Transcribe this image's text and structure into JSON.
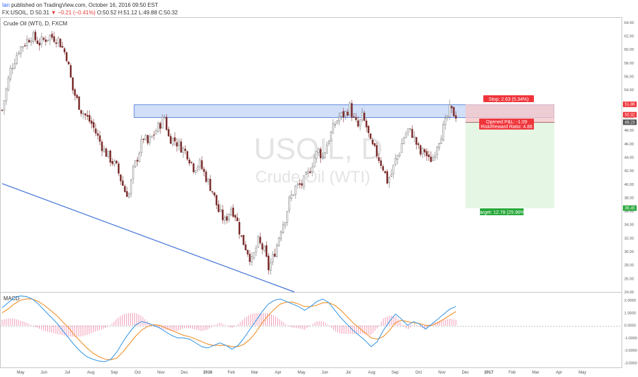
{
  "header": {
    "author": "Ian",
    "published": " published on TradingView.com, October 16, 2016 09:50 EST",
    "symbol": "FX:USOIL, D",
    "last": "50.31",
    "arrow": "▼",
    "change": "−0.21 (−0.41%)",
    "o": "O:50.52",
    "h": "H:51.12",
    "l": "L:49.88",
    "c": "C:50.32"
  },
  "legend_label": "Crude Oil (WTI), D, FXCM",
  "watermark": {
    "symbol": "USOIL, D",
    "name": "Crude Oil (WTI)"
  },
  "colors": {
    "up": "#6e6e6e",
    "down": "#7a2b2b",
    "resistance_fill": "#c9d9f7",
    "resistance_stroke": "#3d6fd6",
    "trendline": "#3d6fd6",
    "stop_fill": "#f4c7c9",
    "target_fill": "#e6f6e4",
    "stop_label": "#f0353a",
    "target_label": "#27a83a",
    "macd_line": "#3f9be6",
    "signal_line": "#f0902a",
    "histogram": "#f29bb5"
  },
  "position": {
    "stop_label": "Stop: 2.63 (5.34%)",
    "pnl_label": "Opened P&L: -1.09",
    "rr_label": "Risk/Reward Ratio: 4.86",
    "target_label": "Target: 12.78 (25.96%)",
    "entry": 49.2,
    "stop": 51.86,
    "target": 36.45,
    "last": 50.32
  },
  "price_tags": {
    "stop": "51.86",
    "last": "50.32",
    "entry": "49.23",
    "target": "36.45"
  },
  "macd_label": "MACD",
  "chart_data": [
    {
      "type": "candlestick",
      "title": "Crude Oil (WTI), D, FXCM",
      "x_axis_labels": [
        "May",
        "Jun",
        "Jul",
        "Aug",
        "Sep",
        "Oct",
        "Nov",
        "Dec",
        "2016",
        "Feb",
        "Mar",
        "Apr",
        "May",
        "Jun",
        "Jul",
        "Aug",
        "Sep",
        "Oct",
        "Nov",
        "Dec",
        "2017",
        "Feb",
        "Mar",
        "Apr",
        "May"
      ],
      "y_ticks": [
        "64.00",
        "62.00",
        "60.00",
        "58.00",
        "56.00",
        "54.00",
        "52.00",
        "50.00",
        "48.00",
        "46.00",
        "44.00",
        "42.00",
        "40.00",
        "38.00",
        "36.00",
        "34.00",
        "32.00",
        "30.00",
        "28.00",
        "26.00",
        "24.00"
      ],
      "ylim": [
        24,
        64.6
      ],
      "price_path": [
        [
          0,
          51
        ],
        [
          4,
          57
        ],
        [
          8,
          60
        ],
        [
          14,
          62
        ],
        [
          18,
          61
        ],
        [
          23,
          62
        ],
        [
          27,
          61.5
        ],
        [
          31,
          59
        ],
        [
          34,
          54
        ],
        [
          38,
          51
        ],
        [
          43,
          49
        ],
        [
          49,
          45
        ],
        [
          55,
          42.5
        ],
        [
          59,
          39
        ],
        [
          61,
          38.5
        ],
        [
          63,
          42
        ],
        [
          66,
          45
        ],
        [
          68,
          47
        ],
        [
          70,
          46
        ],
        [
          73,
          47.5
        ],
        [
          76,
          49
        ],
        [
          78,
          50
        ],
        [
          80,
          47
        ],
        [
          83,
          46.5
        ],
        [
          86,
          45.5
        ],
        [
          89,
          44.5
        ],
        [
          92,
          42.5
        ],
        [
          95,
          43
        ],
        [
          98,
          41
        ],
        [
          101,
          39
        ],
        [
          104,
          36
        ],
        [
          107,
          34.5
        ],
        [
          110,
          36.5
        ],
        [
          112,
          35.5
        ],
        [
          115,
          32
        ],
        [
          118,
          30
        ],
        [
          120,
          28.5
        ],
        [
          123,
          31.5
        ],
        [
          126,
          30
        ],
        [
          128,
          27.5
        ],
        [
          130,
          29
        ],
        [
          132,
          31
        ],
        [
          134,
          33.5
        ],
        [
          136,
          35
        ],
        [
          138,
          37.5
        ],
        [
          141,
          39.5
        ],
        [
          144,
          40
        ],
        [
          147,
          41.5
        ],
        [
          150,
          44
        ],
        [
          152,
          45
        ],
        [
          154,
          44
        ],
        [
          156,
          46
        ],
        [
          158,
          47.5
        ],
        [
          160,
          49
        ],
        [
          162,
          50
        ],
        [
          165,
          50.5
        ],
        [
          167,
          51.5
        ],
        [
          169,
          49.5
        ],
        [
          171,
          48.5
        ],
        [
          173,
          50
        ],
        [
          175,
          48.5
        ],
        [
          177,
          46
        ],
        [
          180,
          44.5
        ],
        [
          183,
          42.5
        ],
        [
          185,
          40.5
        ],
        [
          187,
          41.5
        ],
        [
          189,
          43.5
        ],
        [
          191,
          45
        ],
        [
          193,
          47
        ],
        [
          195,
          48
        ],
        [
          197,
          47.5
        ],
        [
          199,
          46
        ],
        [
          201,
          44.5
        ],
        [
          203,
          45
        ],
        [
          205,
          43.5
        ],
        [
          207,
          44
        ],
        [
          209,
          46
        ],
        [
          211,
          47.5
        ],
        [
          213,
          49
        ],
        [
          215,
          51
        ],
        [
          217,
          50.5
        ],
        [
          218,
          50.3
        ]
      ],
      "resistance_zone": [
        49.9,
        51.8
      ],
      "trendline": {
        "from": [
          "Apr 2015",
          40.1
        ],
        "to": [
          "Mar 2016",
          24
        ]
      }
    },
    {
      "type": "line",
      "title": "MACD",
      "y_ticks": [
        "2.0000",
        "1.0000",
        "0.0000",
        "-1.0000",
        "-2.0000",
        "-3.0000"
      ],
      "ylim": [
        -3.3,
        2.55
      ],
      "series": [
        {
          "values": [
            1.4,
            1.8,
            2.2,
            2.35,
            2.3,
            2.1,
            1.7,
            1.2,
            0.7,
            0.2,
            -0.4,
            -1.0,
            -1.6,
            -2.1,
            -2.5,
            -2.7,
            -2.85,
            -2.9,
            -2.7,
            -2.1,
            -1.3,
            -0.6,
            0.0,
            0.3,
            0.2,
            0.0,
            -0.2,
            -0.5,
            -0.8,
            -1.0,
            -1.0,
            -1.1,
            -1.4,
            -1.7,
            -1.8,
            -1.6,
            -1.4,
            -1.6,
            -1.9,
            -1.6,
            -1.0,
            -0.3,
            0.4,
            1.1,
            1.7,
            2.0,
            2.1,
            1.9,
            1.7,
            1.5,
            1.2,
            1.5,
            1.9,
            2.1,
            1.8,
            1.2,
            0.6,
            0.1,
            -0.4,
            -0.8,
            -1.2,
            -1.7,
            -1.3,
            -0.4,
            0.3,
            0.9,
            0.5,
            0.0,
            0.3,
            0.1,
            -0.3,
            0.1,
            0.5,
            0.9,
            1.3,
            1.5
          ]
        },
        {
          "values": [
            1.0,
            1.3,
            1.7,
            2.0,
            2.1,
            2.1,
            1.9,
            1.6,
            1.2,
            0.8,
            0.3,
            -0.2,
            -0.8,
            -1.3,
            -1.8,
            -2.2,
            -2.5,
            -2.7,
            -2.75,
            -2.6,
            -2.1,
            -1.5,
            -0.9,
            -0.4,
            -0.1,
            0.05,
            0.0,
            -0.2,
            -0.4,
            -0.6,
            -0.8,
            -0.9,
            -1.1,
            -1.3,
            -1.5,
            -1.6,
            -1.6,
            -1.6,
            -1.7,
            -1.7,
            -1.5,
            -1.1,
            -0.5,
            0.2,
            0.8,
            1.3,
            1.7,
            1.85,
            1.85,
            1.7,
            1.5,
            1.5,
            1.6,
            1.8,
            1.8,
            1.6,
            1.2,
            0.7,
            0.2,
            -0.2,
            -0.6,
            -1.0,
            -1.1,
            -0.9,
            -0.4,
            0.2,
            0.4,
            0.3,
            0.2,
            0.15,
            0.0,
            0.0,
            0.2,
            0.5,
            0.8,
            1.1
          ]
        }
      ]
    }
  ]
}
